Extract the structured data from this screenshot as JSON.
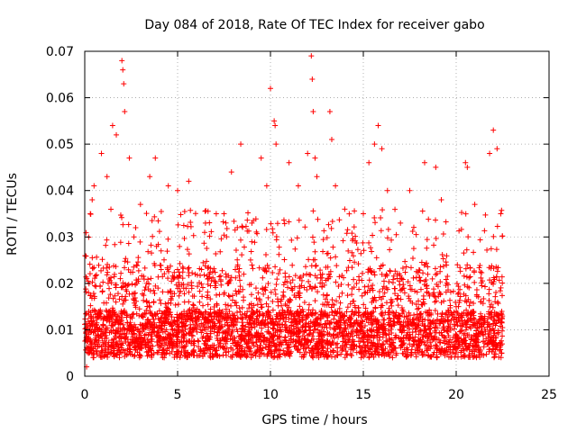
{
  "chart_data": {
    "type": "scatter",
    "title": "Day 084 of 2018, Rate Of TEC Index for receiver gabo",
    "xlabel": "GPS time / hours",
    "ylabel": "ROTI / TECUs",
    "xlim": [
      0,
      25
    ],
    "ylim": [
      0,
      0.07
    ],
    "xticks": [
      0,
      5,
      10,
      15,
      20,
      25
    ],
    "yticks": [
      0,
      0.01,
      0.02,
      0.03,
      0.04,
      0.05,
      0.06,
      0.07
    ],
    "xtick_labels": [
      "0",
      "5",
      "10",
      "15",
      "20",
      "25"
    ],
    "ytick_labels": [
      "0",
      "0.01",
      "0.02",
      "0.03",
      "0.04",
      "0.05",
      "0.06",
      "0.07"
    ],
    "grid": true,
    "marker": "+",
    "series_color": "#ff0000",
    "data_range_hours": [
      0,
      22.5
    ],
    "series": [
      {
        "name": "ROTI",
        "points": [
          [
            0.1,
            0.002
          ],
          [
            0.2,
            0.018
          ],
          [
            0.3,
            0.035
          ],
          [
            0.4,
            0.038
          ],
          [
            0.5,
            0.041
          ],
          [
            0.9,
            0.048
          ],
          [
            1.2,
            0.043
          ],
          [
            1.5,
            0.054
          ],
          [
            1.7,
            0.052
          ],
          [
            2.0,
            0.068
          ],
          [
            2.05,
            0.066
          ],
          [
            2.1,
            0.063
          ],
          [
            2.15,
            0.057
          ],
          [
            2.4,
            0.047
          ],
          [
            3.0,
            0.037
          ],
          [
            3.5,
            0.043
          ],
          [
            3.8,
            0.047
          ],
          [
            4.5,
            0.041
          ],
          [
            5.0,
            0.04
          ],
          [
            5.6,
            0.042
          ],
          [
            6.5,
            0.033
          ],
          [
            7.5,
            0.035
          ],
          [
            7.9,
            0.044
          ],
          [
            8.4,
            0.05
          ],
          [
            9.0,
            0.033
          ],
          [
            9.5,
            0.047
          ],
          [
            9.8,
            0.041
          ],
          [
            10.0,
            0.062
          ],
          [
            10.2,
            0.055
          ],
          [
            10.25,
            0.054
          ],
          [
            10.3,
            0.05
          ],
          [
            11.0,
            0.046
          ],
          [
            11.5,
            0.041
          ],
          [
            12.0,
            0.048
          ],
          [
            12.2,
            0.069
          ],
          [
            12.25,
            0.064
          ],
          [
            12.3,
            0.057
          ],
          [
            12.4,
            0.047
          ],
          [
            12.5,
            0.043
          ],
          [
            13.2,
            0.057
          ],
          [
            13.3,
            0.051
          ],
          [
            13.5,
            0.041
          ],
          [
            14.0,
            0.036
          ],
          [
            15.0,
            0.035
          ],
          [
            15.3,
            0.046
          ],
          [
            15.6,
            0.05
          ],
          [
            15.8,
            0.054
          ],
          [
            16.0,
            0.049
          ],
          [
            16.3,
            0.04
          ],
          [
            17.0,
            0.033
          ],
          [
            17.5,
            0.04
          ],
          [
            18.3,
            0.046
          ],
          [
            18.9,
            0.045
          ],
          [
            19.2,
            0.038
          ],
          [
            20.5,
            0.046
          ],
          [
            20.6,
            0.045
          ],
          [
            21.0,
            0.037
          ],
          [
            21.8,
            0.048
          ],
          [
            22.0,
            0.053
          ],
          [
            22.2,
            0.049
          ],
          [
            22.4,
            0.035
          ],
          [
            22.45,
            0.005
          ]
        ]
      }
    ]
  }
}
